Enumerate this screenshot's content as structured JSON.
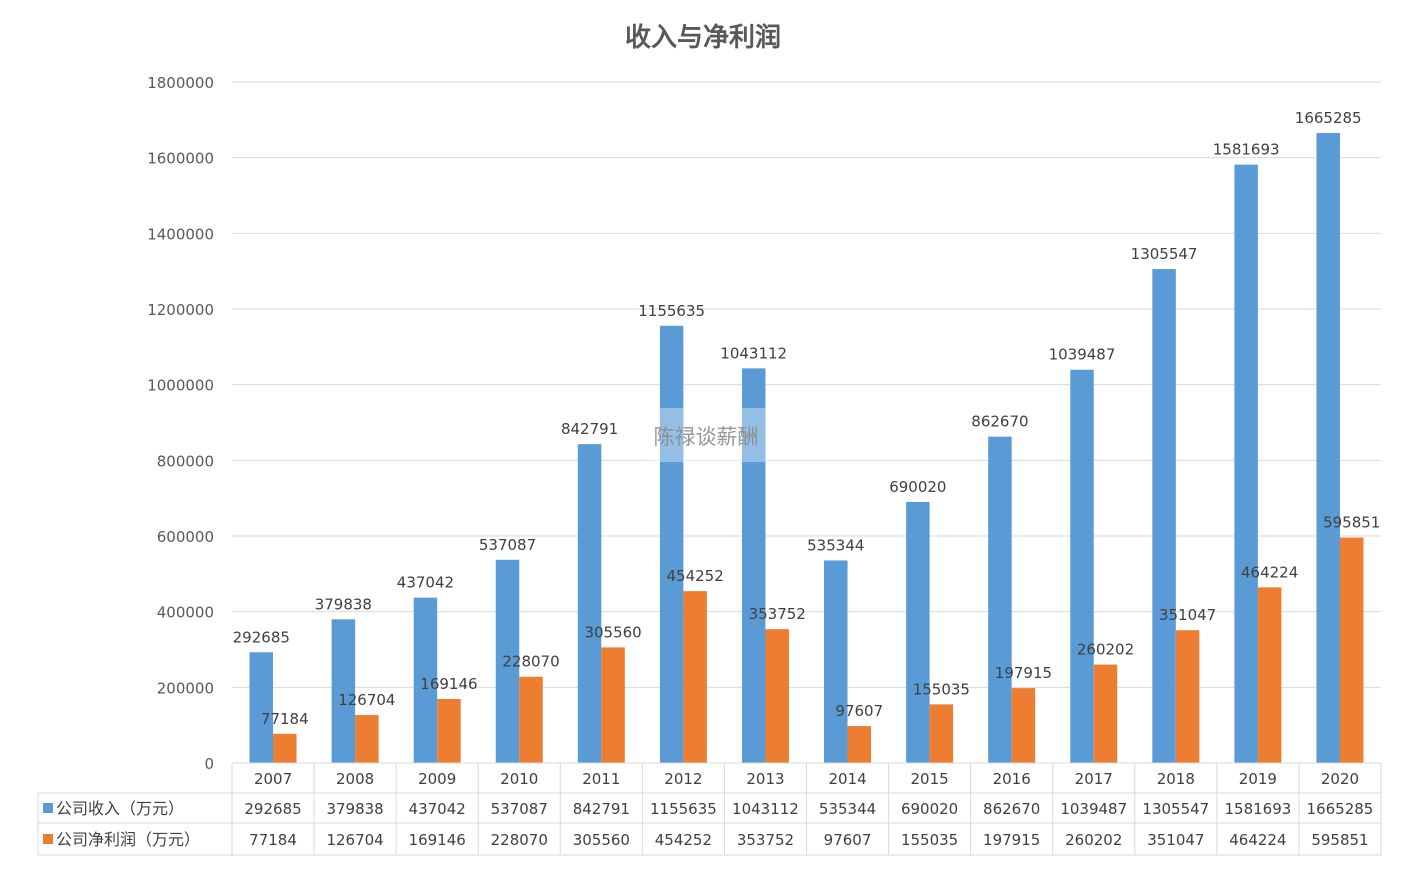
{
  "chart_data": {
    "type": "bar",
    "title": "收入与净利润",
    "categories": [
      "2007",
      "2008",
      "2009",
      "2010",
      "2011",
      "2012",
      "2013",
      "2014",
      "2015",
      "2016",
      "2017",
      "2018",
      "2019",
      "2020"
    ],
    "series": [
      {
        "name": "公司收入（万元）",
        "color": "#5B9BD5",
        "values": [
          292685,
          379838,
          437042,
          537087,
          842791,
          1155635,
          1043112,
          535344,
          690020,
          862670,
          1039487,
          1305547,
          1581693,
          1665285
        ]
      },
      {
        "name": "公司净利润（万元）",
        "color": "#ED7D31",
        "values": [
          77184,
          126704,
          169146,
          228070,
          305560,
          454252,
          353752,
          97607,
          155035,
          197915,
          260202,
          351047,
          464224,
          595851
        ]
      }
    ],
    "ylim": [
      0,
      1800000
    ],
    "yticks": [
      0,
      200000,
      400000,
      600000,
      800000,
      1000000,
      1200000,
      1400000,
      1600000,
      1800000
    ],
    "grid": true,
    "data_labels": true,
    "data_table": true,
    "xlabel": "",
    "ylabel": ""
  },
  "watermark": "陈禄谈薪酬"
}
